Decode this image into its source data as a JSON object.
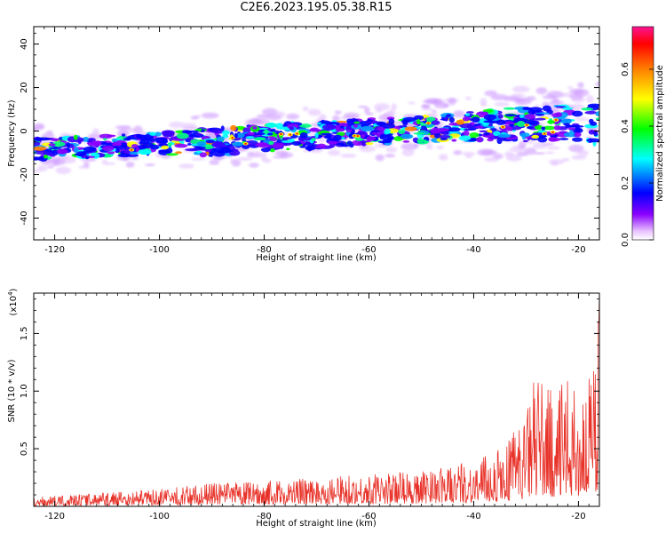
{
  "title": "C2E6.2023.195.05.38.R15",
  "chart_data": [
    {
      "type": "heatmap",
      "name": "spectrogram",
      "xlabel": "Height of straight line (km)",
      "ylabel": "Frequency (Hz)",
      "xlim": [
        -124,
        -16
      ],
      "ylim": [
        -50,
        48
      ],
      "xticks": [
        -120,
        -100,
        -80,
        -60,
        -40,
        -20
      ],
      "yticks": [
        -40,
        -20,
        0,
        20,
        40
      ],
      "band": {
        "description_points_x": [
          -124,
          -110,
          -100,
          -90,
          -80,
          -70,
          -60,
          -50,
          -40,
          -30,
          -20,
          -16
        ],
        "center_freq": [
          -8,
          -7,
          -6,
          -5,
          -3,
          -2,
          0,
          1,
          2,
          3,
          3,
          3
        ],
        "halfwidth": [
          5,
          5,
          5,
          6,
          6,
          6,
          6,
          6,
          7,
          8,
          9,
          9
        ]
      },
      "colorbar": {
        "label": "Normalized spectral amplitude",
        "range": [
          0.0,
          0.75
        ],
        "ticks": [
          0.0,
          0.2,
          0.4,
          0.6
        ],
        "colormap": [
          "#ffffff",
          "#8a00ff",
          "#0000ff",
          "#00ffff",
          "#00ff00",
          "#ffff00",
          "#ff8000",
          "#ff0000",
          "#ff1493"
        ]
      }
    },
    {
      "type": "line",
      "name": "snr",
      "xlabel": "Height of straight line (km)",
      "ylabel": "SNR (10 * v/v)",
      "ylabel_exponent": "(x10",
      "ylabel_exponent_power": "4",
      "ylabel_exponent_close": ")",
      "xlim": [
        -124,
        -16
      ],
      "ylim": [
        0,
        1.85
      ],
      "xticks": [
        -120,
        -100,
        -80,
        -60,
        -40,
        -20
      ],
      "yticks": [
        0.5,
        1.0,
        1.5
      ],
      "color": "#e8332a",
      "envelope": {
        "x": [
          -124,
          -110,
          -100,
          -90,
          -80,
          -70,
          -60,
          -50,
          -45,
          -40,
          -35,
          -30,
          -28,
          -25,
          -22,
          -20,
          -17,
          -16
        ],
        "y": [
          0.08,
          0.12,
          0.15,
          0.2,
          0.22,
          0.25,
          0.28,
          0.3,
          0.35,
          0.4,
          0.5,
          0.8,
          1.2,
          1.0,
          1.1,
          1.0,
          1.2,
          1.85
        ]
      }
    }
  ]
}
